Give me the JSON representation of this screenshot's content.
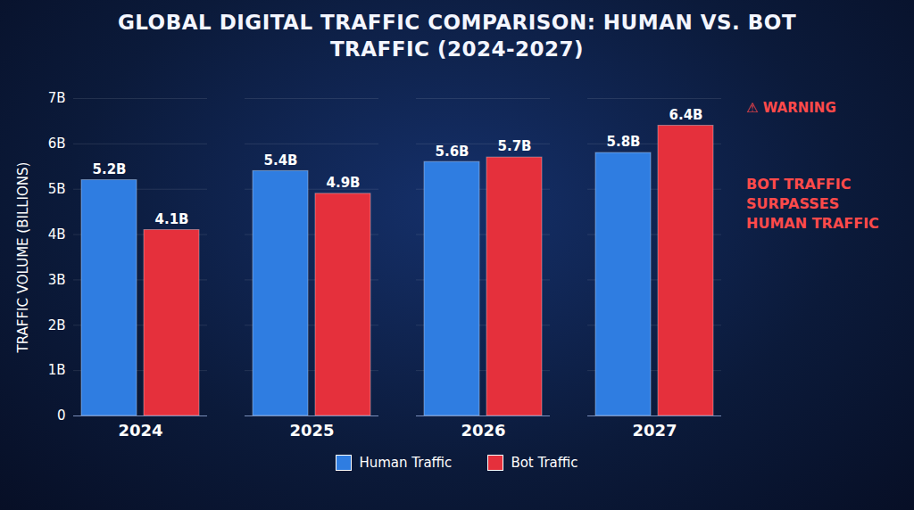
{
  "chart_data": {
    "type": "bar",
    "title": "GLOBAL DIGITAL TRAFFIC COMPARISON: HUMAN VS. BOT TRAFFIC (2024-2027)",
    "y_label": "TRAFFIC VOLUME (BILLIONS)",
    "categories": [
      "2024",
      "2025",
      "2026",
      "2027"
    ],
    "series": [
      {
        "name": "Human Traffic",
        "color": "#2f7de1",
        "values": [
          5.2,
          5.4,
          5.6,
          5.8
        ],
        "value_labels": [
          "5.2B",
          "5.4B",
          "5.6B",
          "5.8B"
        ]
      },
      {
        "name": "Bot Traffic",
        "color": "#e5303c",
        "values": [
          4.1,
          4.9,
          5.7,
          6.4
        ],
        "value_labels": [
          "4.1B",
          "4.9B",
          "5.7B",
          "6.4B"
        ]
      }
    ],
    "ylim": [
      0,
      7
    ],
    "yticks": [
      0,
      {
        "value": 1,
        "label": "1B"
      },
      {
        "value": 2,
        "label": "2B"
      },
      {
        "value": 3,
        "label": "3B"
      },
      {
        "value": 4,
        "label": "4B"
      },
      {
        "value": 5,
        "label": "5B"
      },
      {
        "value": 6,
        "label": "6B"
      },
      {
        "value": 7,
        "label": "7B"
      }
    ],
    "grid": true,
    "data_labels": true,
    "legend": "bottom",
    "annotations": [
      "⚠ WARNING",
      "BOT TRAFFIC SURPASSES HUMAN TRAFFIC"
    ]
  }
}
